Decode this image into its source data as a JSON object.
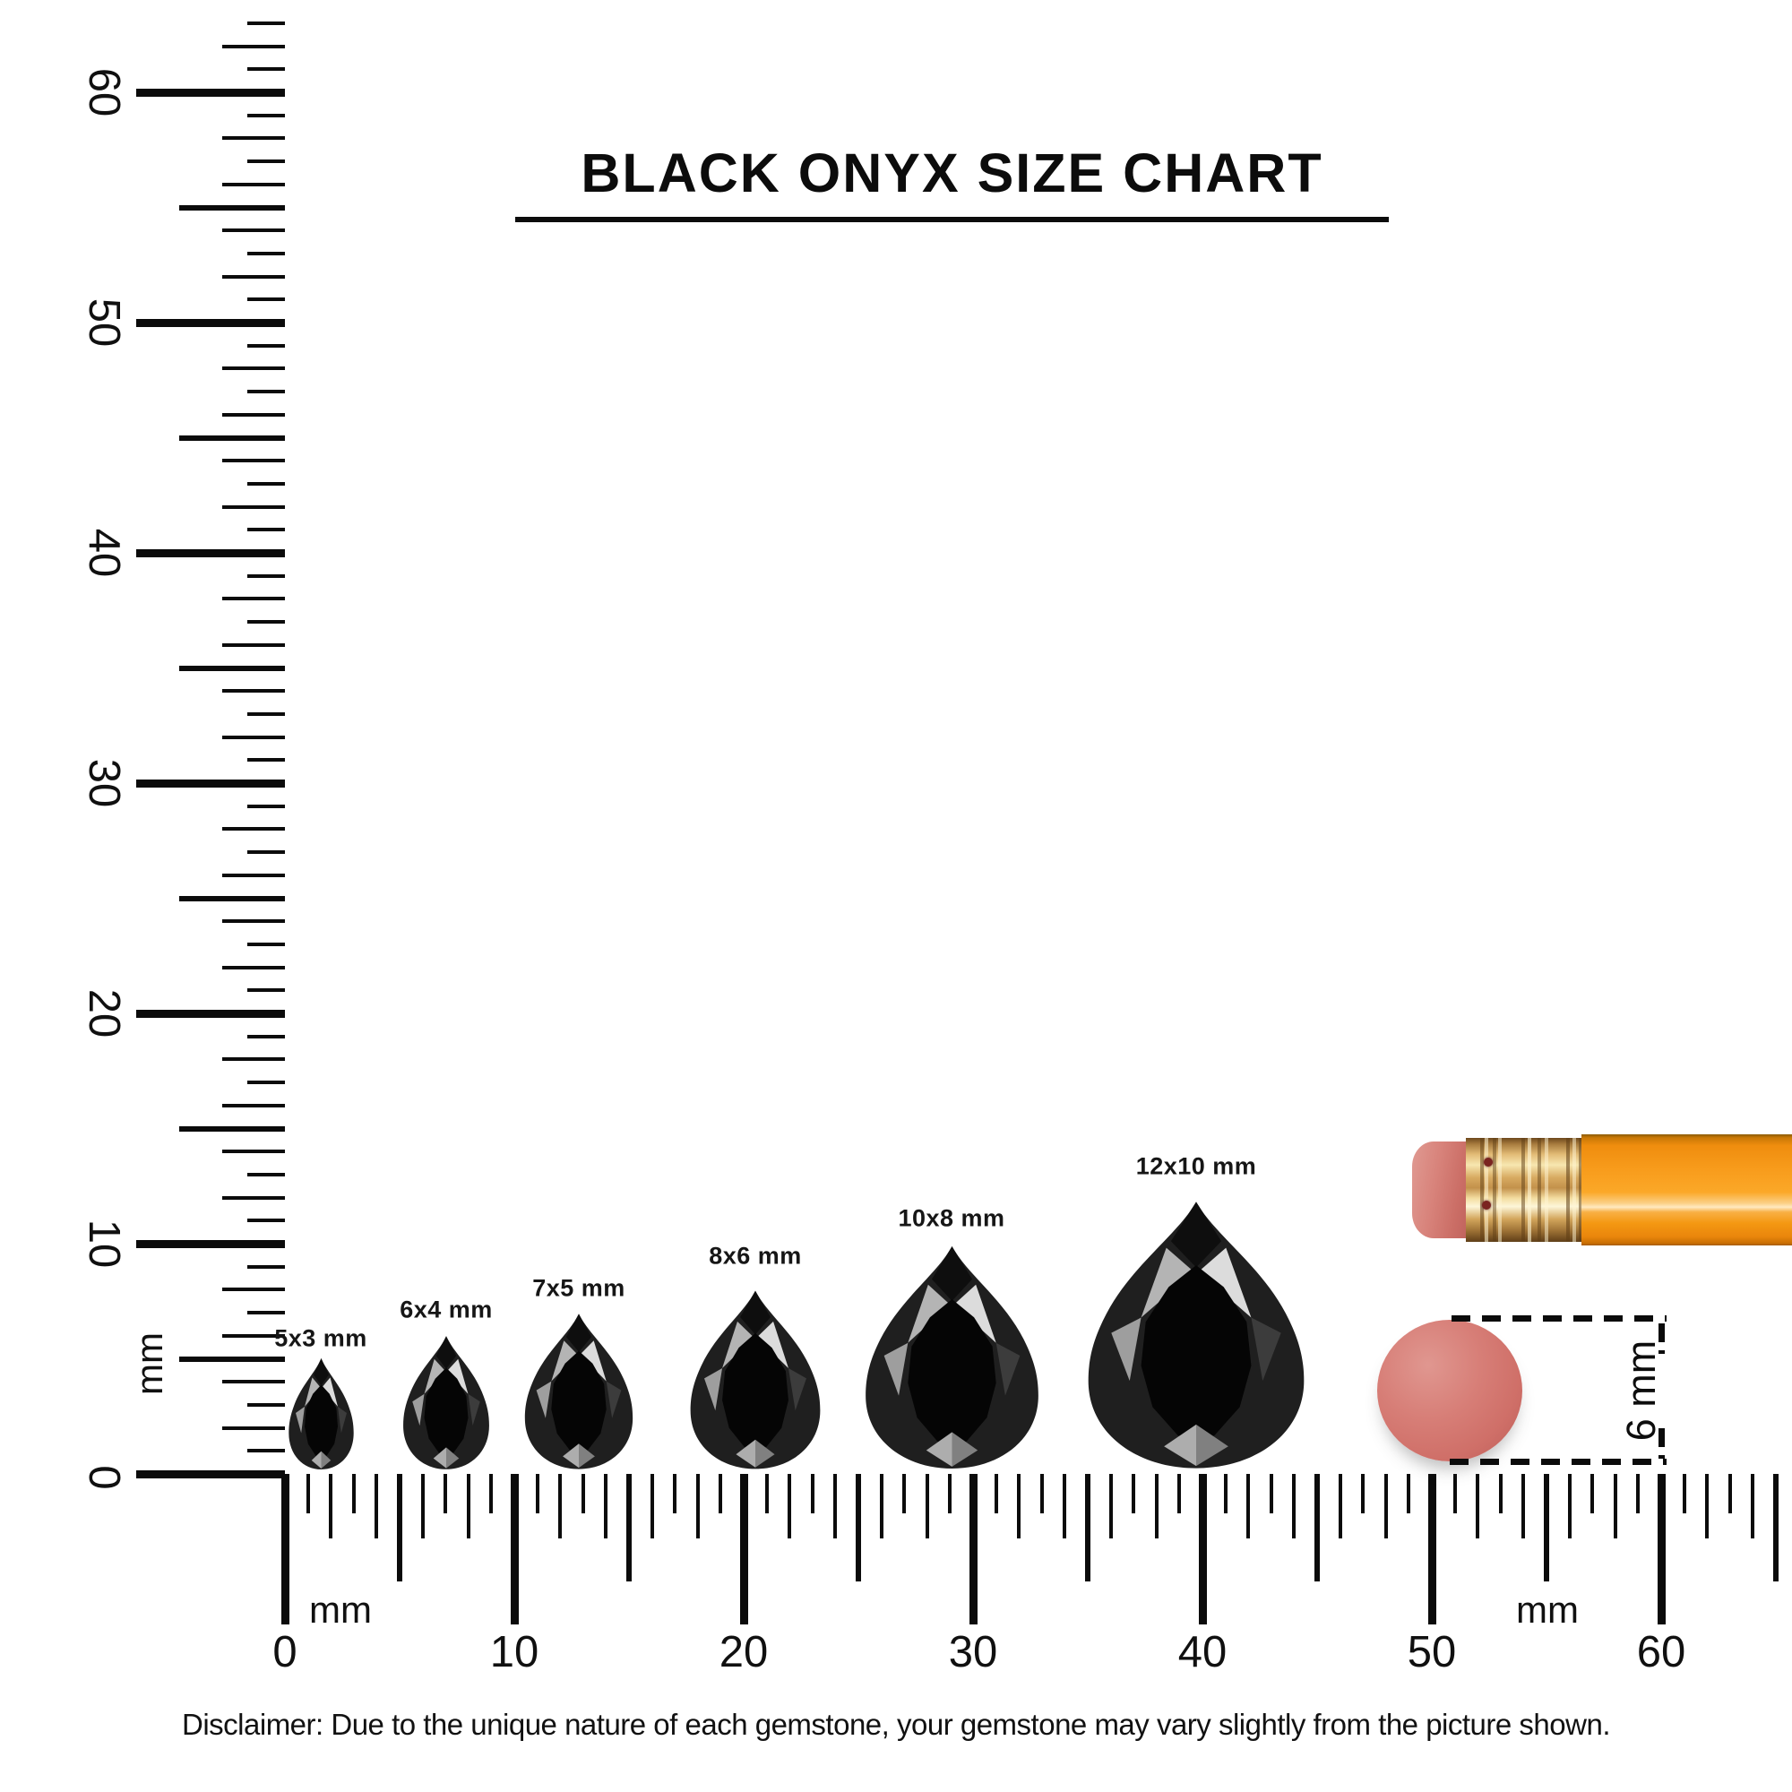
{
  "title": "BLACK ONYX SIZE CHART",
  "gems": [
    {
      "label": "5x3 mm",
      "width_mm": 3,
      "height_mm": 5
    },
    {
      "label": "6x4 mm",
      "width_mm": 4,
      "height_mm": 6
    },
    {
      "label": "7x5 mm",
      "width_mm": 5,
      "height_mm": 7
    },
    {
      "label": "8x6 mm",
      "width_mm": 6,
      "height_mm": 8
    },
    {
      "label": "10x8 mm",
      "width_mm": 8,
      "height_mm": 10
    },
    {
      "label": "12x10 mm",
      "width_mm": 10,
      "height_mm": 12
    }
  ],
  "rulers": {
    "vertical": {
      "unit": "mm",
      "min_mm": 0,
      "max_mm": 60,
      "major_labels": [
        "0",
        "10",
        "20",
        "30",
        "40",
        "50",
        "60"
      ]
    },
    "horizontal": {
      "unit": "mm",
      "min_mm": 0,
      "max_mm": 60,
      "major_labels": [
        "0",
        "10",
        "20",
        "30",
        "40",
        "50",
        "60"
      ]
    }
  },
  "eraser_measure": {
    "label": "6 mm",
    "diameter_mm": 6
  },
  "disclaimer": "Disclaimer: Due to the unique nature of each gemstone, your gemstone may vary slightly from the picture shown.",
  "colors": {
    "ink": "#0b0b0b",
    "gem_black": "#111111",
    "gem_highlight": "#dcdcdc",
    "pencil_body": "#f89c1b",
    "pencil_ferrule": "#d9ac66",
    "pencil_eraser": "#d5836c",
    "eraser_circle": "#d5736c"
  }
}
